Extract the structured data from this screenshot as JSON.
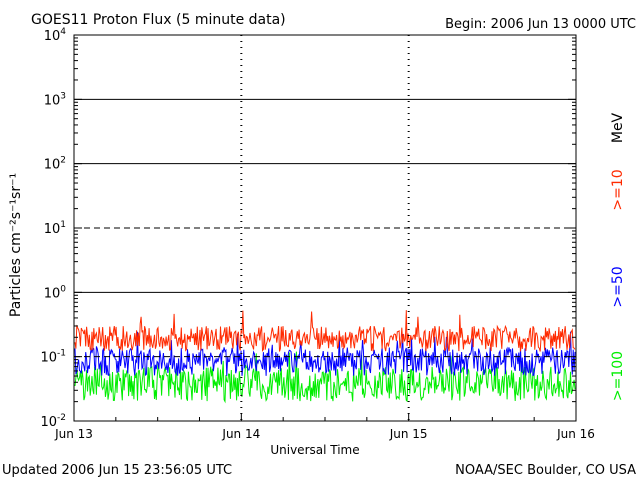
{
  "header": {
    "title": "GOES11 Proton Flux (5 minute data)",
    "begin": "Begin: 2006 Jun 13 0000 UTC"
  },
  "footer": {
    "updated": "Updated 2006 Jun 15 23:56:05 UTC",
    "credit": "NOAA/SEC Boulder, CO USA"
  },
  "chart_data": {
    "type": "line",
    "title": "GOES11 Proton Flux (5 minute data)",
    "xlabel": "Universal Time",
    "ylabel": "Particles cm⁻²s⁻¹sr⁻¹",
    "y_scale": "log",
    "ylim": [
      0.01,
      10000
    ],
    "xlim": [
      "2006-06-13 00:00",
      "2006-06-16 00:00"
    ],
    "x_tick_labels": [
      "Jun 13",
      "Jun 14",
      "Jun 15",
      "Jun 16"
    ],
    "y_ticks": [
      {
        "base": "10",
        "exp": "-2"
      },
      {
        "base": "10",
        "exp": "-1"
      },
      {
        "base": "10",
        "exp": "0"
      },
      {
        "base": "10",
        "exp": "1"
      },
      {
        "base": "10",
        "exp": "2"
      },
      {
        "base": "10",
        "exp": "3"
      },
      {
        "base": "10",
        "exp": "4"
      }
    ],
    "reference_lines": [
      {
        "value": 1000,
        "style": "solid"
      },
      {
        "value": 100,
        "style": "solid"
      },
      {
        "value": 10,
        "style": "dashed"
      },
      {
        "value": 1,
        "style": "solid"
      },
      {
        "value": 0.1,
        "style": "dashed"
      }
    ],
    "energy_unit": "MeV",
    "series": [
      {
        "name": ">=10",
        "color": "#ff2a00",
        "typical_range": [
          0.12,
          0.3
        ],
        "peak": 0.55
      },
      {
        "name": ">=50",
        "color": "#0000ff",
        "typical_range": [
          0.05,
          0.14
        ],
        "peak": 0.26
      },
      {
        "name": ">=100",
        "color": "#00ee00",
        "typical_range": [
          0.02,
          0.07
        ],
        "peak": 0.13
      }
    ]
  }
}
